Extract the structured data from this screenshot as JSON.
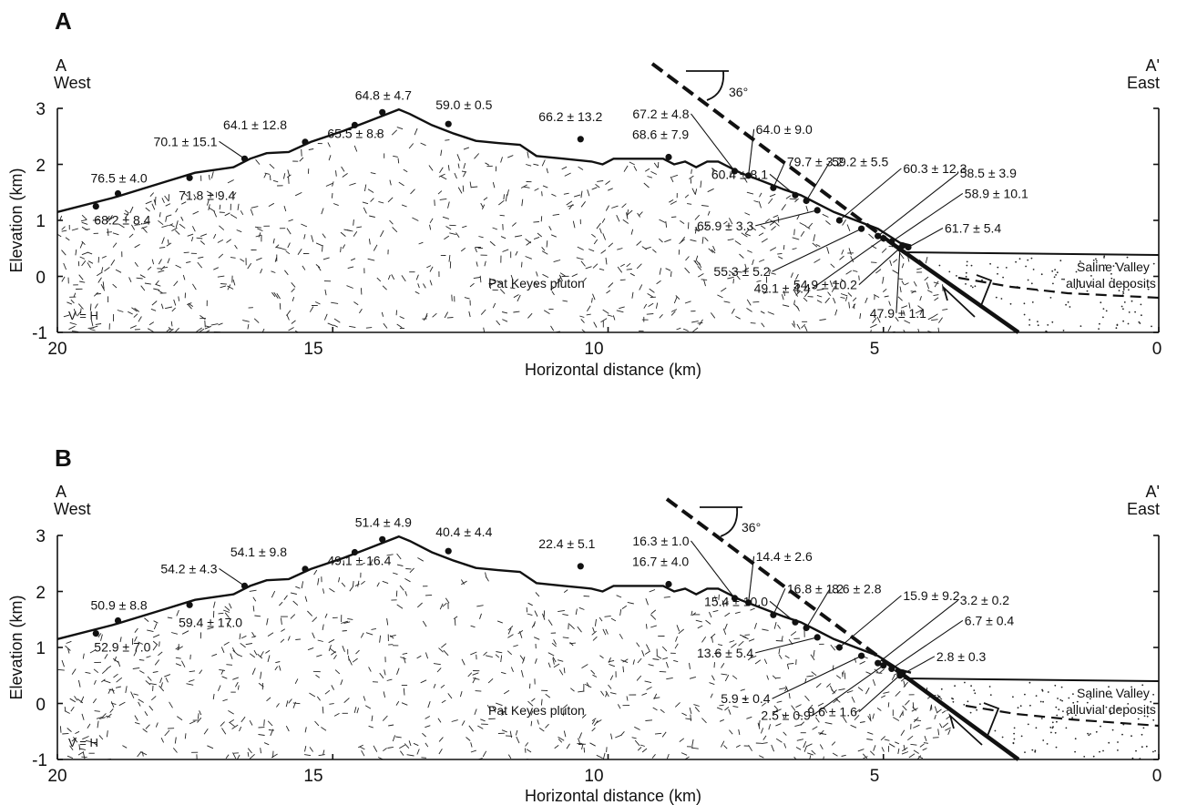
{
  "colors": {
    "ink": "#111111",
    "background": "#ffffff"
  },
  "panels": [
    {
      "letter": "A",
      "left_end": {
        "label": "A",
        "sub": "West"
      },
      "right_end": {
        "label": "A'",
        "sub": "East"
      },
      "xlabel": "Horizontal distance (km)",
      "ylabel": "Elevation (km)",
      "x_ticks": [
        "20",
        "15",
        "10",
        "5",
        "0"
      ],
      "y_ticks": [
        "3",
        "2",
        "1",
        "0",
        "-1"
      ],
      "dip_label": "36°",
      "pluton_label": "Pat Keyes pluton",
      "deposit_label": [
        "Saline Valley",
        "alluvial deposits"
      ],
      "scale_note": "V = H",
      "samples": [
        {
          "x": 19.3,
          "z": 1.25,
          "age": "68.2 ± 8.4"
        },
        {
          "x": 18.9,
          "z": 1.48,
          "age": "76.5 ± 4.0"
        },
        {
          "x": 17.6,
          "z": 1.76,
          "age": "71.8 ± 9.4"
        },
        {
          "x": 16.6,
          "z": 2.1,
          "age": "70.1 ± 15.1"
        },
        {
          "x": 15.5,
          "z": 2.4,
          "age": "64.1 ± 12.8"
        },
        {
          "x": 14.6,
          "z": 2.7,
          "age": "65.5 ± 8.8"
        },
        {
          "x": 14.1,
          "z": 2.93,
          "age": "64.8 ± 4.7"
        },
        {
          "x": 12.9,
          "z": 2.72,
          "age": "59.0 ± 0.5"
        },
        {
          "x": 10.5,
          "z": 2.45,
          "age": "66.2 ± 13.2"
        },
        {
          "x": 8.9,
          "z": 2.13,
          "age": "68.6 ± 7.9"
        },
        {
          "x": 7.7,
          "z": 1.88,
          "age": "67.2 ± 4.8"
        },
        {
          "x": 7.45,
          "z": 1.8,
          "age": "64.0 ± 9.0"
        },
        {
          "x": 7.0,
          "z": 1.58,
          "age": "79.7 ± 3.2"
        },
        {
          "x": 6.6,
          "z": 1.45,
          "age": "60.4 ± 8.1"
        },
        {
          "x": 6.4,
          "z": 1.35,
          "age": "59.2 ± 5.5"
        },
        {
          "x": 6.2,
          "z": 1.18,
          "age": "65.9 ± 3.3"
        },
        {
          "x": 5.8,
          "z": 1.0,
          "age": "60.3 ± 12.3"
        },
        {
          "x": 5.4,
          "z": 0.85,
          "age": "55.3 ± 5.2"
        },
        {
          "x": 5.1,
          "z": 0.72,
          "age": "58.5 ± 3.9"
        },
        {
          "x": 5.0,
          "z": 0.68,
          "age": "49.1 ± 4.4"
        },
        {
          "x": 4.85,
          "z": 0.62,
          "age": "58.9 ± 10.1"
        },
        {
          "x": 4.65,
          "z": 0.55,
          "age": "54.9 ± 10.2"
        },
        {
          "x": 4.55,
          "z": 0.52,
          "age": "61.7 ± 5.4"
        },
        {
          "x": 4.7,
          "z": 0.5,
          "age": "47.9 ± 1.1"
        }
      ]
    },
    {
      "letter": "B",
      "left_end": {
        "label": "A",
        "sub": "West"
      },
      "right_end": {
        "label": "A'",
        "sub": "East"
      },
      "xlabel": "Horizontal distance (km)",
      "ylabel": "Elevation (km)",
      "x_ticks": [
        "20",
        "15",
        "10",
        "5",
        "0"
      ],
      "y_ticks": [
        "3",
        "2",
        "1",
        "0",
        "-1"
      ],
      "dip_label": "36°",
      "pluton_label": "Pat Keyes pluton",
      "deposit_label": [
        "Saline Valley",
        "alluvial deposits"
      ],
      "scale_note": "V = H",
      "samples": [
        {
          "x": 19.3,
          "z": 1.25,
          "age": "52.9 ± 7.0"
        },
        {
          "x": 18.9,
          "z": 1.48,
          "age": "50.9 ± 8.8"
        },
        {
          "x": 17.6,
          "z": 1.76,
          "age": "59.4 ± 17.0"
        },
        {
          "x": 16.6,
          "z": 2.1,
          "age": "54.2 ± 4.3"
        },
        {
          "x": 15.5,
          "z": 2.4,
          "age": "54.1 ± 9.8"
        },
        {
          "x": 14.6,
          "z": 2.7,
          "age": "49.1 ± 16.4"
        },
        {
          "x": 14.1,
          "z": 2.93,
          "age": "51.4 ± 4.9"
        },
        {
          "x": 12.9,
          "z": 2.72,
          "age": "40.4 ± 4.4"
        },
        {
          "x": 10.5,
          "z": 2.45,
          "age": "22.4 ± 5.1"
        },
        {
          "x": 8.9,
          "z": 2.13,
          "age": "16.7 ± 4.0"
        },
        {
          "x": 7.7,
          "z": 1.88,
          "age": "16.3 ± 1.0"
        },
        {
          "x": 7.45,
          "z": 1.8,
          "age": "14.4 ± 2.6"
        },
        {
          "x": 7.0,
          "z": 1.58,
          "age": "16.8 ± 1.2"
        },
        {
          "x": 6.6,
          "z": 1.45,
          "age": "15.4 ± 10.0"
        },
        {
          "x": 6.4,
          "z": 1.35,
          "age": "8.6 ± 2.8"
        },
        {
          "x": 6.2,
          "z": 1.18,
          "age": "13.6 ± 5.4"
        },
        {
          "x": 5.8,
          "z": 1.0,
          "age": "15.9 ± 9.2"
        },
        {
          "x": 5.4,
          "z": 0.85,
          "age": "5.9 ± 0.4"
        },
        {
          "x": 5.1,
          "z": 0.72,
          "age": "3.2 ± 0.2"
        },
        {
          "x": 5.0,
          "z": 0.68,
          "age": "2.5 ± 0.9"
        },
        {
          "x": 4.85,
          "z": 0.62,
          "age": "6.7 ± 0.4"
        },
        {
          "x": 4.65,
          "z": 0.55,
          "age": "9.6 ± 1.6"
        },
        {
          "x": 4.7,
          "z": 0.5,
          "age": "2.8 ± 0.3"
        }
      ]
    }
  ]
}
